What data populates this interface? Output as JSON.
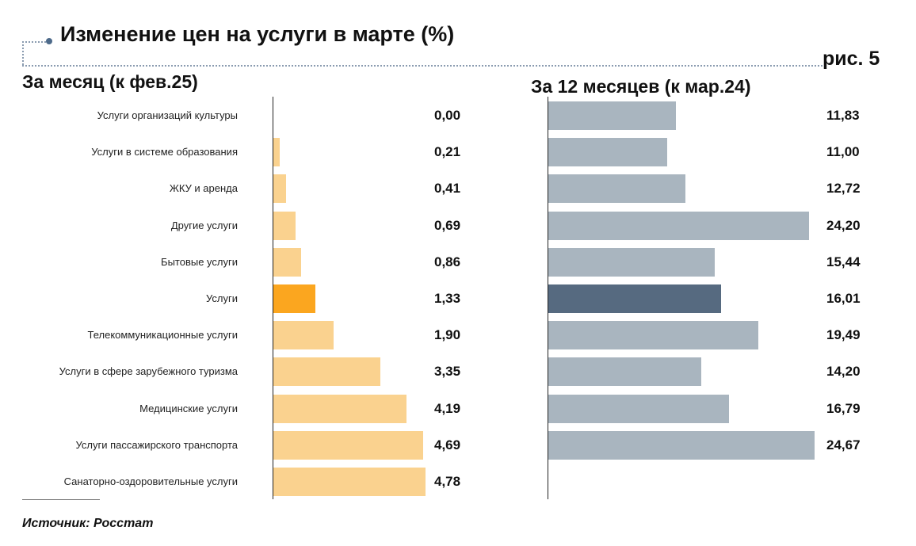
{
  "header": {
    "title": "Изменение цен на услуги в марте (%)",
    "figure_label": "рис. 5"
  },
  "footer": {
    "source": "Источник: Росстат"
  },
  "colors": {
    "left_bar": "#fad28f",
    "left_highlight": "#fba61f",
    "right_bar": "#a9b5bf",
    "right_highlight": "#566a80"
  },
  "chart_data": [
    {
      "type": "bar",
      "orientation": "horizontal",
      "title": "За месяц (к фев.25)",
      "categories": [
        "Услуги организаций культуры",
        "Услуги в системе образования",
        "ЖКУ и аренда",
        "Другие услуги",
        "Бытовые услуги",
        "Услуги",
        "Телекоммуникационные услуги",
        "Услуги в сфере зарубежного туризма",
        "Медицинские услуги",
        "Услуги пассажирского транспорта",
        "Санаторно-оздоровительные услуги"
      ],
      "values": [
        0.0,
        0.21,
        0.41,
        0.69,
        0.86,
        1.33,
        1.9,
        3.35,
        4.19,
        4.69,
        4.78
      ],
      "value_labels": [
        "0,00",
        "0,21",
        "0,41",
        "0,69",
        "0,86",
        "1,33",
        "1,90",
        "3,35",
        "4,19",
        "4,69",
        "4,78"
      ],
      "highlight_category": "Услуги",
      "xlim": [
        0,
        5
      ],
      "grid": false,
      "legend": "none"
    },
    {
      "type": "bar",
      "orientation": "horizontal",
      "title": "За 12 месяцев (к мар.24)",
      "categories": [
        "Услуги организаций культуры",
        "Услуги в системе образования",
        "ЖКУ и аренда",
        "Другие услуги",
        "Бытовые услуги",
        "Услуги",
        "Телекоммуникационные услуги",
        "Услуги в сфере зарубежного туризма",
        "Медицинские услуги",
        "Услуги пассажирского транспорта"
      ],
      "values": [
        11.83,
        11.0,
        12.72,
        24.2,
        15.44,
        16.01,
        19.49,
        14.2,
        16.79,
        24.67
      ],
      "value_labels": [
        "11,83",
        "11,00",
        "12,72",
        "24,20",
        "15,44",
        "16,01",
        "19,49",
        "14,20",
        "16,79",
        "24,67"
      ],
      "highlight_category": "Услуги",
      "xlim": [
        0,
        25
      ],
      "grid": false,
      "legend": "none"
    }
  ]
}
